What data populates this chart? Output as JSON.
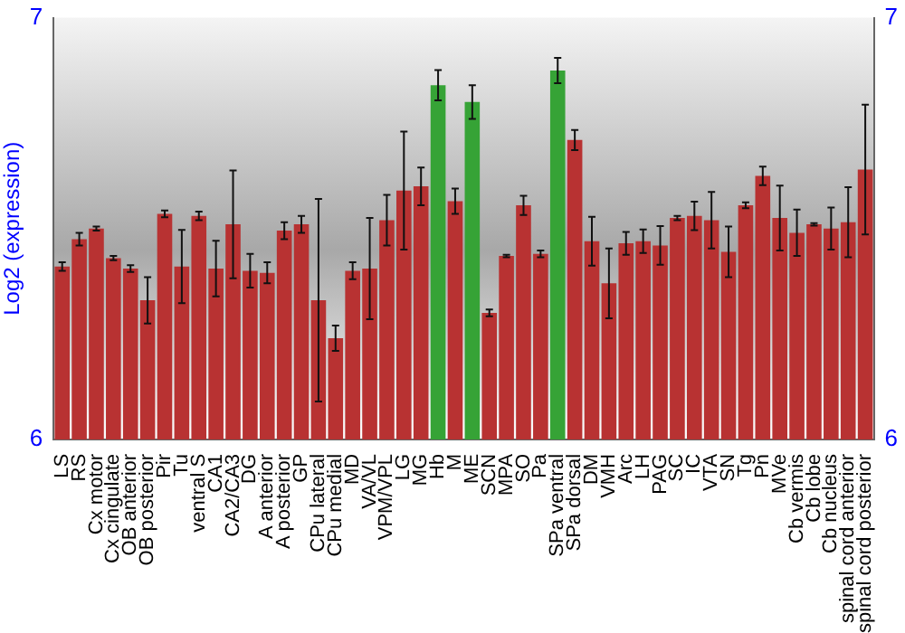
{
  "chart_data": {
    "type": "bar",
    "ylabel": "Log2 (expression)",
    "categories": [
      "LS",
      "RS",
      "Cx motor",
      "Cx cingulate",
      "OB anterior",
      "OB posterior",
      "Pir",
      "Tu",
      "ventral S",
      "CA1",
      "CA2/CA3",
      "DG",
      "A anterior",
      "A posterior",
      "GP",
      "CPu lateral",
      "CPu medial",
      "MD",
      "VA/VL",
      "VPM/VPL",
      "LG",
      "MG",
      "Hb",
      "M",
      "ME",
      "SCN",
      "MPA",
      "SO",
      "Pa",
      "SPa ventral",
      "SPa dorsal",
      "DM",
      "VMH",
      "Arc",
      "LH",
      "PAG",
      "SC",
      "IC",
      "VTA",
      "SN",
      "Tg",
      "Pn",
      "MVe",
      "Cb vermis",
      "Cb lobe",
      "Cb nucleus",
      "spinal cord anterior",
      "spinal cord posterior"
    ],
    "values": [
      6.41,
      6.475,
      6.5,
      6.43,
      6.405,
      6.33,
      6.535,
      6.41,
      6.53,
      6.405,
      6.51,
      6.4,
      6.395,
      6.495,
      6.51,
      6.33,
      6.24,
      6.4,
      6.405,
      6.52,
      6.59,
      6.6,
      6.84,
      6.565,
      6.8,
      6.3,
      6.435,
      6.555,
      6.44,
      6.875,
      6.71,
      6.47,
      6.37,
      6.465,
      6.47,
      6.46,
      6.525,
      6.53,
      6.52,
      6.445,
      6.555,
      6.625,
      6.525,
      6.49,
      6.51,
      6.5,
      6.515,
      6.64
    ],
    "errors": [
      0.01,
      0.015,
      0.005,
      0.005,
      0.008,
      0.055,
      0.008,
      0.087,
      0.01,
      0.066,
      0.128,
      0.04,
      0.025,
      0.02,
      0.02,
      0.24,
      0.03,
      0.02,
      0.12,
      0.06,
      0.14,
      0.045,
      0.036,
      0.03,
      0.04,
      0.008,
      0.003,
      0.023,
      0.008,
      0.03,
      0.024,
      0.058,
      0.083,
      0.027,
      0.028,
      0.046,
      0.005,
      0.034,
      0.067,
      0.06,
      0.007,
      0.022,
      0.077,
      0.055,
      0.003,
      0.05,
      0.083,
      0.154
    ],
    "colors": [
      "#b83232",
      "#b83232",
      "#b83232",
      "#b83232",
      "#b83232",
      "#b83232",
      "#b83232",
      "#b83232",
      "#b83232",
      "#b83232",
      "#b83232",
      "#b83232",
      "#b83232",
      "#b83232",
      "#b83232",
      "#b83232",
      "#b83232",
      "#b83232",
      "#b83232",
      "#b83232",
      "#b83232",
      "#b83232",
      "#36a336",
      "#b83232",
      "#36a336",
      "#b83232",
      "#b83232",
      "#b83232",
      "#b83232",
      "#36a336",
      "#b83232",
      "#b83232",
      "#b83232",
      "#b83232",
      "#b83232",
      "#b83232",
      "#b83232",
      "#b83232",
      "#b83232",
      "#b83232",
      "#b83232",
      "#b83232",
      "#b83232",
      "#b83232",
      "#b83232",
      "#b83232",
      "#b83232",
      "#b83232"
    ],
    "ylim": [
      6,
      7
    ],
    "yticks": [
      6,
      7
    ],
    "y2lim": [
      6,
      7
    ],
    "y2ticks": [
      6,
      7
    ],
    "grid": false,
    "legend": false
  }
}
